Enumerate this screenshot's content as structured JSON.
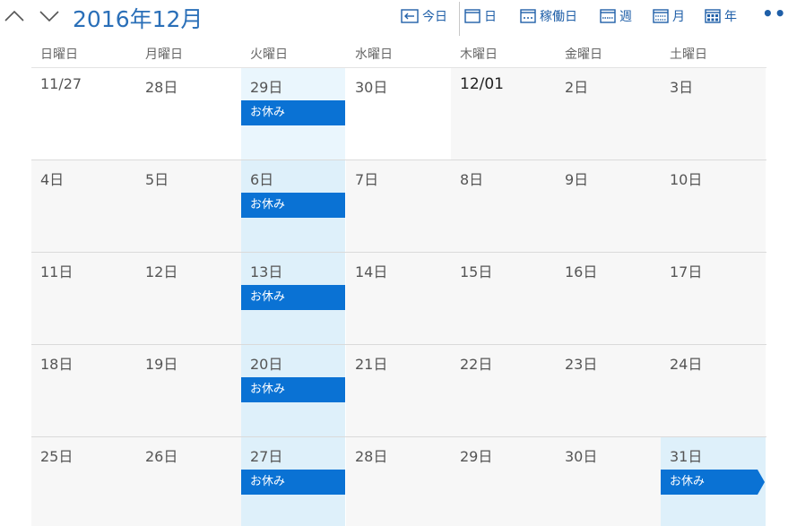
{
  "header": {
    "title": "2016年12月",
    "today_label": "今日",
    "day_label": "日",
    "workweek_label": "稼働日",
    "week_label": "週",
    "month_label": "月",
    "year_label": "年",
    "more_label": "•••"
  },
  "weekdays": [
    "日曜日",
    "月曜日",
    "火曜日",
    "水曜日",
    "木曜日",
    "金曜日",
    "土曜日"
  ],
  "weeks": [
    [
      {
        "label": "11/27"
      },
      {
        "label": "28日"
      },
      {
        "label": "29日",
        "event": "お休み"
      },
      {
        "label": "30日"
      },
      {
        "label": "12/01",
        "bold": true
      },
      {
        "label": "2日"
      },
      {
        "label": "3日"
      }
    ],
    [
      {
        "label": "4日"
      },
      {
        "label": "5日"
      },
      {
        "label": "6日",
        "event": "お休み"
      },
      {
        "label": "7日"
      },
      {
        "label": "8日"
      },
      {
        "label": "9日"
      },
      {
        "label": "10日"
      }
    ],
    [
      {
        "label": "11日"
      },
      {
        "label": "12日"
      },
      {
        "label": "13日",
        "event": "お休み"
      },
      {
        "label": "14日"
      },
      {
        "label": "15日"
      },
      {
        "label": "16日"
      },
      {
        "label": "17日"
      }
    ],
    [
      {
        "label": "18日"
      },
      {
        "label": "19日"
      },
      {
        "label": "20日",
        "event": "お休み"
      },
      {
        "label": "21日"
      },
      {
        "label": "22日"
      },
      {
        "label": "23日"
      },
      {
        "label": "24日"
      }
    ],
    [
      {
        "label": "25日"
      },
      {
        "label": "26日"
      },
      {
        "label": "27日",
        "event": "お休み"
      },
      {
        "label": "28日"
      },
      {
        "label": "29日"
      },
      {
        "label": "30日"
      },
      {
        "label": "31日",
        "event": "お休み",
        "today": true
      }
    ]
  ],
  "colors": {
    "accent": "#0a72d4",
    "title": "#2a6fb8",
    "highlight": "#def0fa"
  }
}
